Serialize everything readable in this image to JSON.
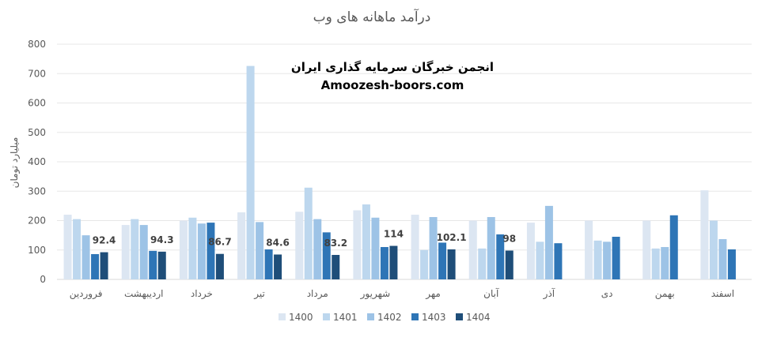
{
  "chart_data": {
    "type": "bar",
    "title": "درآمد ماهانه های وب",
    "ylabel": "میلیارد تومان",
    "xlabel": "",
    "ylim": [
      0,
      800
    ],
    "yticks": [
      0,
      100,
      200,
      300,
      400,
      500,
      600,
      700,
      800
    ],
    "grid": true,
    "legend_position": "bottom",
    "categories": [
      "فروردین",
      "اردیبهشت",
      "خرداد",
      "تیر",
      "مرداد",
      "شهریور",
      "مهر",
      "آبان",
      "آذر",
      "دی",
      "بهمن",
      "اسفند"
    ],
    "series": [
      {
        "name": "1400",
        "color": "#dce6f2",
        "values": [
          220,
          185,
          200,
          228,
          230,
          235,
          220,
          200,
          193,
          200,
          200,
          303
        ]
      },
      {
        "name": "1401",
        "color": "#bdd7ee",
        "values": [
          205,
          205,
          210,
          726,
          312,
          255,
          100,
          105,
          128,
          132,
          105,
          200
        ]
      },
      {
        "name": "1402",
        "color": "#9dc3e6",
        "values": [
          150,
          185,
          190,
          195,
          205,
          210,
          212,
          212,
          250,
          128,
          110,
          137
        ]
      },
      {
        "name": "1403",
        "color": "#2e75b6",
        "values": [
          86,
          97,
          193,
          102,
          160,
          110,
          125,
          153,
          123,
          145,
          218,
          102
        ]
      },
      {
        "name": "1404",
        "color": "#1f4e79",
        "values": [
          92.4,
          94.3,
          86.7,
          84.6,
          83.2,
          114,
          102.1,
          98,
          null,
          null,
          null,
          null
        ]
      }
    ],
    "data_labels": [
      "92.4",
      "94.3",
      "86.7",
      "84.6",
      "83.2",
      "114",
      "102.1",
      "98"
    ],
    "annotations": [
      "انجمن خبرگان سرمایه گذاری ایران",
      "Amoozesh-boors.com"
    ]
  }
}
